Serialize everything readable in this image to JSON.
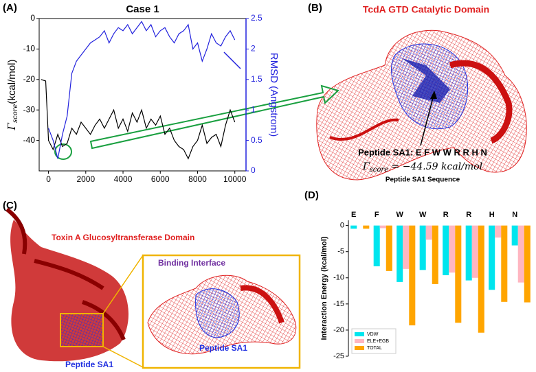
{
  "panel_labels": [
    "(A)",
    "(B)",
    "(C)",
    "(D)"
  ],
  "chart_data": [
    {
      "type": "line",
      "title": "Case 1",
      "x": [
        -400,
        -150,
        0,
        250,
        500,
        750,
        1000,
        1250,
        1500,
        1750,
        2000,
        2250,
        2500,
        2750,
        3000,
        3250,
        3500,
        3750,
        4000,
        4250,
        4500,
        4750,
        5000,
        5250,
        5500,
        5750,
        6000,
        6250,
        6500,
        6750,
        7000,
        7250,
        7500,
        7750,
        8000,
        8250,
        8500,
        8750,
        9000,
        9250,
        9500,
        9750,
        10000
      ],
      "xlim": [
        -500,
        10600
      ],
      "xticks": [
        0,
        2000,
        4000,
        6000,
        8000,
        10000
      ],
      "ylim": [
        -50,
        0
      ],
      "yticks": [
        -40,
        -30,
        -20,
        -10,
        0
      ],
      "y2lim": [
        0,
        2.5
      ],
      "y2ticks": [
        0,
        0.5,
        1,
        1.5,
        2,
        2.5
      ],
      "ylabel": {
        "symbol": "Γ",
        "subscript": "score",
        "unit": "(kcal/mol)"
      },
      "y2label": "RMSD (Angstrom)",
      "series": [
        {
          "color": "#000000",
          "values": [
            -20,
            -20.5,
            -40,
            -43,
            -38,
            -42,
            -41,
            -36,
            -38,
            -34,
            -36,
            -38,
            -35,
            -33,
            -36,
            -33,
            -30,
            -36,
            -33,
            -37,
            -31,
            -34,
            -30,
            -36,
            -33,
            -35,
            -32,
            -38,
            -36,
            -40,
            -42,
            -43,
            -46,
            -42,
            -40,
            -35,
            -41,
            -39,
            -38,
            -42,
            -35,
            -30,
            -34
          ]
        },
        {
          "color": "#2222dd",
          "axis": "y2",
          "values": [
            null,
            null,
            0.7,
            0.5,
            0.2,
            0.6,
            0.9,
            1.6,
            1.8,
            1.9,
            2.0,
            2.1,
            2.15,
            2.2,
            2.3,
            2.1,
            2.25,
            2.35,
            2.3,
            2.4,
            2.25,
            2.35,
            2.45,
            2.3,
            2.4,
            2.2,
            2.3,
            2.35,
            2.2,
            2.1,
            2.25,
            2.3,
            2.4,
            2.0,
            2.1,
            1.8,
            2.0,
            2.25,
            2.1,
            2.05,
            2.2,
            2.3,
            2.15
          ]
        }
      ]
    },
    {
      "type": "bar",
      "categories": [
        "E",
        "F",
        "W",
        "W",
        "R",
        "R",
        "H",
        "N"
      ],
      "ylim": [
        -25,
        1
      ],
      "yticks": [
        -25,
        -20,
        -15,
        -10,
        -5,
        0
      ],
      "ylabel": "Interaction Energy (kcal/mol)",
      "legend": "lower left",
      "series": [
        {
          "name": "VDW",
          "color": "#00e5ee",
          "values": [
            -0.6,
            -7.8,
            -10.8,
            -8.5,
            -9.5,
            -10.5,
            -12.3,
            -3.8
          ]
        },
        {
          "name": "ELE+EGB",
          "color": "#ffb6c1",
          "values": [
            0,
            -0.5,
            -8.3,
            -2.7,
            -9.0,
            -10.0,
            -2.3,
            -10.9
          ]
        },
        {
          "name": "TOTAL",
          "color": "#ffa500",
          "values": [
            -0.6,
            -8.7,
            -19.1,
            -11.2,
            -18.6,
            -20.5,
            -14.6,
            -14.7
          ]
        }
      ]
    }
  ],
  "panel_b": {
    "title": "TcdA GTD Catalytic Domain",
    "peptide": "Peptide SA1: E F W W R R H N",
    "score": {
      "symbol": "Γ",
      "subscript": "score",
      "equation": " = −44.59 kcal/mol"
    },
    "caption": "Peptide SA1 Sequence"
  },
  "panel_c": {
    "domain_label": "Toxin A Glucosyltransferase Domain",
    "inset_title": "Binding Interface",
    "inset_label": "Peptide SA1",
    "peptide_label": "Peptide SA1"
  }
}
